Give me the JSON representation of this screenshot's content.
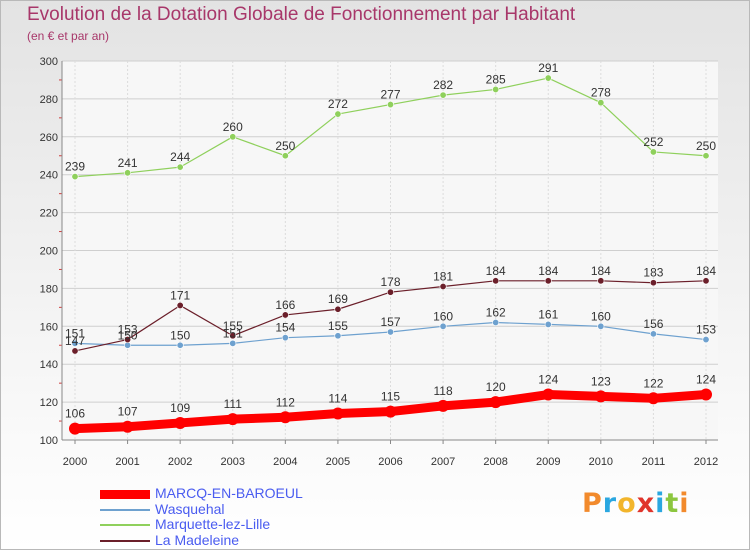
{
  "title": "Evolution de la Dotation Globale de Fonctionnement par Habitant",
  "subtitle": "(en € et par an)",
  "logo": {
    "text": "Proxiti",
    "letter_colors": [
      "#f28a2c",
      "#2aa7e0",
      "#f2b52c",
      "#e0352c",
      "#2aa7e0",
      "#8cc63f",
      "#f28a2c"
    ]
  },
  "chart_data": {
    "type": "line",
    "x": [
      "2000",
      "2001",
      "2002",
      "2003",
      "2004",
      "2005",
      "2006",
      "2007",
      "2008",
      "2009",
      "2010",
      "2011",
      "2012"
    ],
    "ylim": [
      100,
      300
    ],
    "yticks": [
      "100",
      "120",
      "140",
      "160",
      "180",
      "200",
      "220",
      "240",
      "260",
      "280",
      "300"
    ],
    "grid": true,
    "legend_position": "bottom-left",
    "series": [
      {
        "name": "MARCQ-EN-BAROEUL",
        "color": "#ff0000",
        "values": [
          106,
          107,
          109,
          111,
          112,
          114,
          115,
          118,
          120,
          124,
          123,
          122,
          124
        ]
      },
      {
        "name": "Wasquehal",
        "color": "#6ea1cf",
        "values": [
          151,
          150,
          150,
          151,
          154,
          155,
          157,
          160,
          162,
          161,
          160,
          156,
          153
        ]
      },
      {
        "name": "Marquette-lez-Lille",
        "color": "#8fd05c",
        "values": [
          239,
          241,
          244,
          260,
          250,
          272,
          277,
          282,
          285,
          291,
          278,
          252,
          250
        ]
      },
      {
        "name": "La Madeleine",
        "color": "#6b1f2a",
        "values": [
          147,
          153,
          171,
          155,
          166,
          169,
          178,
          181,
          184,
          184,
          184,
          183,
          184
        ]
      }
    ],
    "data_labels": [
      [
        "106",
        "107",
        "109",
        "111",
        "112",
        "114",
        "115",
        "118",
        "120",
        "124",
        "123",
        "122",
        "124"
      ],
      [
        "151",
        "150",
        "150",
        "151",
        "154",
        "155",
        "157",
        "160",
        "162",
        "161",
        "160",
        "156",
        "153"
      ],
      [
        "239",
        "241",
        "244",
        "260",
        "250",
        "272",
        "277",
        "282",
        "285",
        "291",
        "278",
        "252",
        "250"
      ],
      [
        "147",
        "153",
        "171",
        "155",
        "166",
        "169",
        "178",
        "181",
        "184",
        "184",
        "184",
        "183",
        "184"
      ]
    ]
  }
}
